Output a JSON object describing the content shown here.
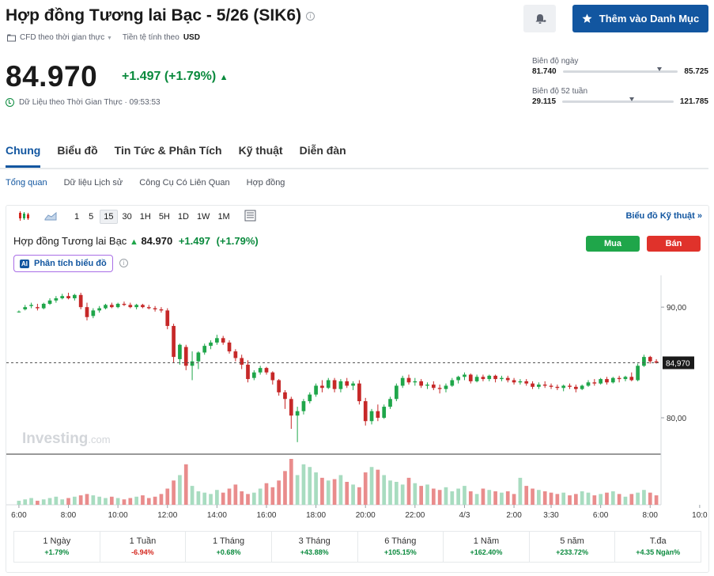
{
  "header": {
    "title": "Hợp đồng Tương lai Bạc - 5/26 (SIK6)",
    "cfd_label": "CFD theo thời gian thực",
    "currency_label": "Tiền tệ tính theo",
    "currency": "USD",
    "watchlist_button": "Thêm vào Danh Mục"
  },
  "quote": {
    "price": "84.970",
    "change": "+1.497 (+1.79%)",
    "realtime_label": "Dữ Liệu theo Thời Gian Thực · 09:53:53"
  },
  "ranges": {
    "day_label": "Biên độ ngày",
    "day_low": "81.740",
    "day_high": "85.725",
    "day_position": 0.82,
    "week52_label": "Biên độ 52 tuần",
    "week52_low": "29.115",
    "week52_high": "121.785",
    "week52_position": 0.6
  },
  "tabs": [
    "Chung",
    "Biểu đồ",
    "Tin Tức & Phân Tích",
    "Kỹ thuật",
    "Diễn đàn"
  ],
  "subtabs": [
    "Tổng quan",
    "Dữ liệu Lịch sử",
    "Công Cụ Có Liên Quan",
    "Hợp đồng"
  ],
  "toolbar": {
    "intervals": [
      "1",
      "5",
      "15",
      "30",
      "1H",
      "5H",
      "1D",
      "1W",
      "1M"
    ],
    "active_interval": "15",
    "tech_chart_link": "Biểu đồ Kỹ thuật »"
  },
  "chart_header": {
    "name": "Hợp đồng Tương lai Bạc",
    "price": "84.970",
    "change": "+1.497",
    "change_pct": "(+1.79%)",
    "buy": "Mua",
    "sell": "Bán",
    "ai_badge": "AI",
    "ai_label": "Phân tích biểu đồ",
    "watermark": "Investing",
    "watermark_suffix": ".com"
  },
  "colors": {
    "up": "#1fa64a",
    "down": "#c62828",
    "vol_up": "#a8dcc0",
    "vol_down": "#e98c8c",
    "accent": "#1256a0"
  },
  "chart_data": {
    "type": "candlestick",
    "ylim": [
      77,
      92.3
    ],
    "yticks": [
      "90,00",
      "80,00"
    ],
    "ytick_values": [
      90,
      80
    ],
    "last_price_label": "84,970",
    "last_price": 84.97,
    "xticks": [
      "6:00",
      "8:00",
      "10:00",
      "12:00",
      "14:00",
      "16:00",
      "18:00",
      "20:00",
      "22:00",
      "4/3",
      "2:00",
      "3:30",
      "6:00",
      "8:00",
      "10:0"
    ],
    "xtick_positions": [
      0,
      8,
      16,
      24,
      32,
      40,
      48,
      56,
      64,
      72,
      80,
      86,
      94,
      102,
      110
    ],
    "candles": [
      [
        89.6,
        89.7,
        89.5,
        89.6
      ],
      [
        89.8,
        90.2,
        89.7,
        90.0
      ],
      [
        90.1,
        90.4,
        89.9,
        90.2
      ],
      [
        90.0,
        90.3,
        89.7,
        89.9
      ],
      [
        89.9,
        90.4,
        89.8,
        90.3
      ],
      [
        90.3,
        90.8,
        90.2,
        90.6
      ],
      [
        90.6,
        91.0,
        90.4,
        90.8
      ],
      [
        90.8,
        91.2,
        90.7,
        91.0
      ],
      [
        91.0,
        91.3,
        90.7,
        90.8
      ],
      [
        90.8,
        91.2,
        90.6,
        91.1
      ],
      [
        91.1,
        91.3,
        89.8,
        90.0
      ],
      [
        90.0,
        90.4,
        88.8,
        89.1
      ],
      [
        89.2,
        89.9,
        89.0,
        89.7
      ],
      [
        89.7,
        90.1,
        89.5,
        89.9
      ],
      [
        89.9,
        90.3,
        89.8,
        90.2
      ],
      [
        90.2,
        90.4,
        89.9,
        90.0
      ],
      [
        90.0,
        90.4,
        89.9,
        90.3
      ],
      [
        90.3,
        90.5,
        90.1,
        90.2
      ],
      [
        90.2,
        90.4,
        89.9,
        90.0
      ],
      [
        90.0,
        90.3,
        89.8,
        90.2
      ],
      [
        90.2,
        90.3,
        89.9,
        90.0
      ],
      [
        90.0,
        90.2,
        89.8,
        89.9
      ],
      [
        89.9,
        90.1,
        89.6,
        89.8
      ],
      [
        89.8,
        90.0,
        89.5,
        89.7
      ],
      [
        89.7,
        89.9,
        88.0,
        88.3
      ],
      [
        88.3,
        88.5,
        85.0,
        85.5
      ],
      [
        85.3,
        86.7,
        84.8,
        86.6
      ],
      [
        86.4,
        86.6,
        84.3,
        84.7
      ],
      [
        84.7,
        86.0,
        83.4,
        85.1
      ],
      [
        85.1,
        86.0,
        84.4,
        85.9
      ],
      [
        85.9,
        86.7,
        85.7,
        86.5
      ],
      [
        86.5,
        87.0,
        86.2,
        86.8
      ],
      [
        86.8,
        87.5,
        86.6,
        87.2
      ],
      [
        87.2,
        87.4,
        86.6,
        86.8
      ],
      [
        86.8,
        87.0,
        85.8,
        86.0
      ],
      [
        86.0,
        86.2,
        85.1,
        85.4
      ],
      [
        85.4,
        85.7,
        84.4,
        84.8
      ],
      [
        84.8,
        85.2,
        83.2,
        83.5
      ],
      [
        83.6,
        84.3,
        83.4,
        84.1
      ],
      [
        84.1,
        84.7,
        83.9,
        84.5
      ],
      [
        84.5,
        84.6,
        83.9,
        84.1
      ],
      [
        84.1,
        84.2,
        83.0,
        83.4
      ],
      [
        83.4,
        83.5,
        82.0,
        82.3
      ],
      [
        82.3,
        82.5,
        80.8,
        81.7
      ],
      [
        81.7,
        81.9,
        79.0,
        80.2
      ],
      [
        80.2,
        81.0,
        77.8,
        80.6
      ],
      [
        80.6,
        81.7,
        80.3,
        81.5
      ],
      [
        81.5,
        82.3,
        81.3,
        82.1
      ],
      [
        82.1,
        83.1,
        81.9,
        82.9
      ],
      [
        82.9,
        83.4,
        82.3,
        82.7
      ],
      [
        82.7,
        83.6,
        82.6,
        83.4
      ],
      [
        83.4,
        83.6,
        82.3,
        82.6
      ],
      [
        82.6,
        83.5,
        82.3,
        83.3
      ],
      [
        83.3,
        83.6,
        82.7,
        82.9
      ],
      [
        82.9,
        83.3,
        82.5,
        83.1
      ],
      [
        83.1,
        83.4,
        81.2,
        81.5
      ],
      [
        81.5,
        81.8,
        79.3,
        79.7
      ],
      [
        79.7,
        80.8,
        79.4,
        80.6
      ],
      [
        80.6,
        81.2,
        79.7,
        80.0
      ],
      [
        80.0,
        81.2,
        79.9,
        81.0
      ],
      [
        81.0,
        81.9,
        80.8,
        81.7
      ],
      [
        81.7,
        83.1,
        81.5,
        82.9
      ],
      [
        82.9,
        83.8,
        82.7,
        83.6
      ],
      [
        83.6,
        83.9,
        83.0,
        83.2
      ],
      [
        83.2,
        83.6,
        82.9,
        83.3
      ],
      [
        83.3,
        83.5,
        82.7,
        82.9
      ],
      [
        82.9,
        83.2,
        82.6,
        83.0
      ],
      [
        83.0,
        83.3,
        82.5,
        82.7
      ],
      [
        82.7,
        83.0,
        82.2,
        82.6
      ],
      [
        82.6,
        83.1,
        82.3,
        82.9
      ],
      [
        82.9,
        83.6,
        82.8,
        83.4
      ],
      [
        83.4,
        83.8,
        83.1,
        83.7
      ],
      [
        83.7,
        84.1,
        83.4,
        83.9
      ],
      [
        83.9,
        84.0,
        83.1,
        83.3
      ],
      [
        83.3,
        83.9,
        83.2,
        83.7
      ],
      [
        83.7,
        83.9,
        83.3,
        83.5
      ],
      [
        83.5,
        83.9,
        83.3,
        83.8
      ],
      [
        83.8,
        83.9,
        83.2,
        83.5
      ],
      [
        83.5,
        83.8,
        83.3,
        83.6
      ],
      [
        83.6,
        83.8,
        83.2,
        83.4
      ],
      [
        83.4,
        83.6,
        83.0,
        83.2
      ],
      [
        83.2,
        83.5,
        83.0,
        83.3
      ],
      [
        83.3,
        83.5,
        82.9,
        83.1
      ],
      [
        83.1,
        83.3,
        82.6,
        82.8
      ],
      [
        82.8,
        83.2,
        82.6,
        83.0
      ],
      [
        83.0,
        83.3,
        82.7,
        82.9
      ],
      [
        82.9,
        83.1,
        82.6,
        82.8
      ],
      [
        82.8,
        83.0,
        82.5,
        82.7
      ],
      [
        82.7,
        83.0,
        82.4,
        82.9
      ],
      [
        82.9,
        83.1,
        82.6,
        82.8
      ],
      [
        82.8,
        83.0,
        82.3,
        82.6
      ],
      [
        82.6,
        83.0,
        82.5,
        82.9
      ],
      [
        82.9,
        83.4,
        82.8,
        83.2
      ],
      [
        83.2,
        83.5,
        82.9,
        83.1
      ],
      [
        83.1,
        83.6,
        83.0,
        83.5
      ],
      [
        83.5,
        83.7,
        83.0,
        83.2
      ],
      [
        83.2,
        83.7,
        83.1,
        83.6
      ],
      [
        83.6,
        83.8,
        83.2,
        83.5
      ],
      [
        83.5,
        83.8,
        83.3,
        83.7
      ],
      [
        83.7,
        84.1,
        83.3,
        83.4
      ],
      [
        83.4,
        84.9,
        83.3,
        84.7
      ],
      [
        84.7,
        85.7,
        84.6,
        85.5
      ],
      [
        85.5,
        85.6,
        84.9,
        85.1
      ],
      [
        85.1,
        85.3,
        84.9,
        84.97
      ]
    ],
    "volumes": [
      3,
      4,
      5,
      3,
      4,
      5,
      6,
      4,
      5,
      6,
      7,
      8,
      7,
      6,
      5,
      6,
      5,
      4,
      5,
      6,
      7,
      5,
      6,
      8,
      12,
      18,
      22,
      30,
      14,
      10,
      9,
      8,
      11,
      9,
      12,
      15,
      10,
      8,
      9,
      12,
      16,
      13,
      18,
      25,
      34,
      22,
      30,
      28,
      24,
      20,
      18,
      19,
      22,
      17,
      15,
      13,
      24,
      28,
      26,
      22,
      18,
      17,
      15,
      20,
      16,
      14,
      15,
      12,
      11,
      13,
      10,
      12,
      14,
      10,
      8,
      12,
      11,
      10,
      9,
      10,
      8,
      20,
      14,
      12,
      11,
      10,
      9,
      8,
      9,
      7,
      8,
      10,
      9,
      7,
      8,
      9,
      10,
      8,
      6,
      8,
      9,
      11,
      9,
      7
    ]
  },
  "performance": [
    {
      "label": "1 Ngày",
      "value": "+1.79%"
    },
    {
      "label": "1 Tuần",
      "value": "-6.94%"
    },
    {
      "label": "1 Tháng",
      "value": "+0.68%"
    },
    {
      "label": "3 Tháng",
      "value": "+43.88%"
    },
    {
      "label": "6 Tháng",
      "value": "+105.15%"
    },
    {
      "label": "1 Năm",
      "value": "+162.40%"
    },
    {
      "label": "5 năm",
      "value": "+233.72%"
    },
    {
      "label": "T.đa",
      "value": "+4.35 Ngàn%"
    }
  ]
}
